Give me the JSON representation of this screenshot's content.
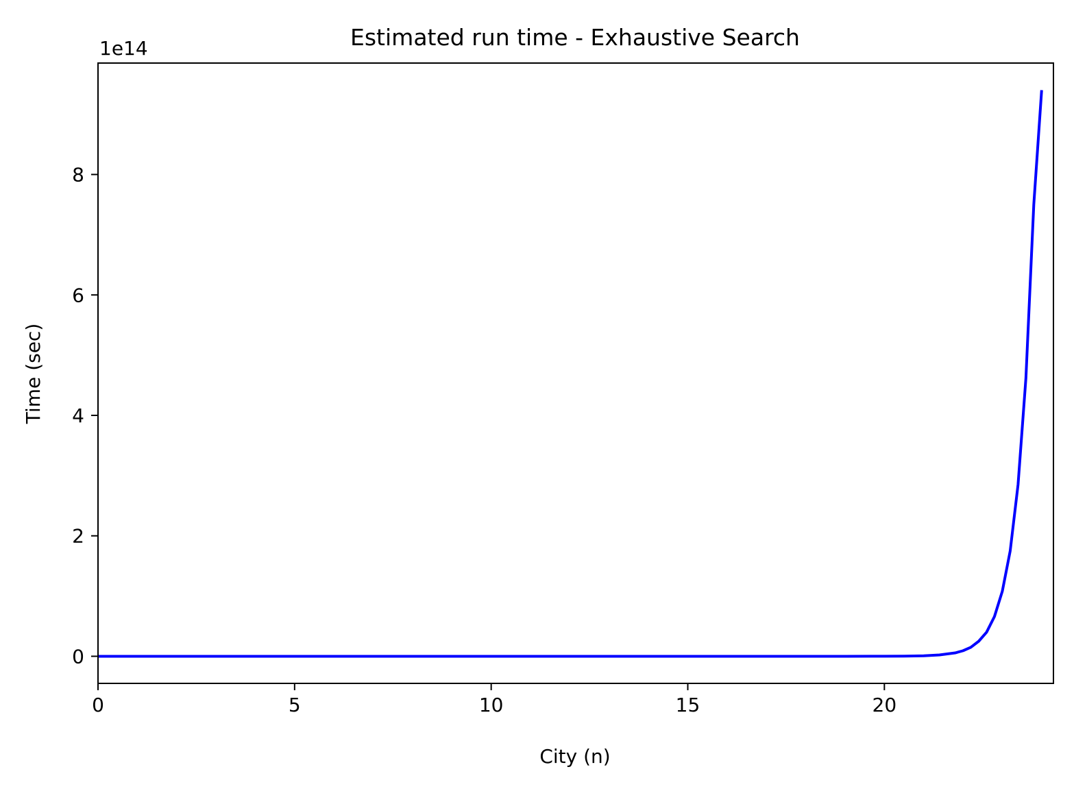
{
  "chart_data": {
    "type": "line",
    "title": "Estimated run time - Exhaustive Search",
    "xlabel": "City (n)",
    "ylabel": "Time (sec)",
    "y_offset_label": "1e14",
    "xlim": [
      0,
      24.3
    ],
    "ylim": [
      -45000000000000.0,
      985000000000000.0
    ],
    "x_ticks": [
      0,
      5,
      10,
      15,
      20
    ],
    "x_tick_labels": [
      "0",
      "5",
      "10",
      "15",
      "20"
    ],
    "y_ticks": [
      0,
      200000000000000.0,
      400000000000000.0,
      600000000000000.0,
      800000000000000.0
    ],
    "y_tick_labels": [
      "0",
      "2",
      "4",
      "6",
      "8"
    ],
    "grid": false,
    "legend": "none",
    "colors": {
      "line": "#0000ff",
      "axes": "#000000",
      "background": "#ffffff"
    },
    "series": [
      {
        "color": "#0000ff",
        "x": [
          0,
          2,
          4,
          6,
          8,
          10,
          12,
          14,
          16,
          18,
          19,
          20,
          20.5,
          21,
          21.4,
          21.8,
          22,
          22.2,
          22.4,
          22.6,
          22.8,
          23,
          23.2,
          23.4,
          23.6,
          23.8,
          24
        ],
        "y": [
          0,
          0,
          0,
          0,
          0,
          0,
          0,
          0,
          0,
          0,
          0,
          100000000000.0,
          300000000000.0,
          850000000000.0,
          2200000000000.0,
          5600000000000.0,
          9200000000000.0,
          15000000000000.0,
          25000000000000.0,
          40000000000000.0,
          66000000000000.0,
          108000000000000.0,
          175000000000000.0,
          285000000000000.0,
          462000000000000.0,
          750000000000000.0,
          940000000000000.0
        ]
      }
    ]
  }
}
